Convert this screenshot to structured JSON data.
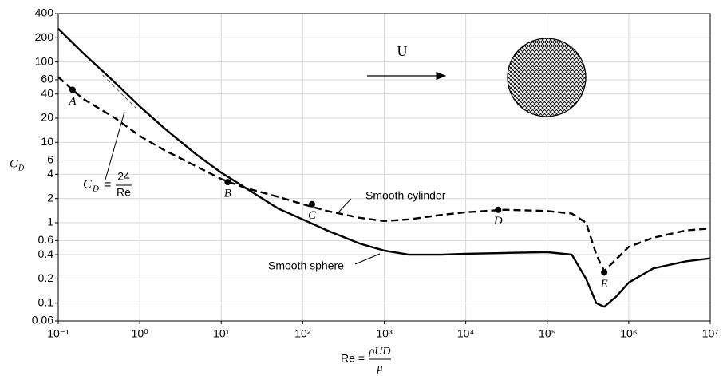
{
  "chart_data": {
    "type": "line",
    "x_label": {
      "lhs": "Re =",
      "num": "ρUD",
      "den": "μ"
    },
    "y_label": {
      "main": "C",
      "sub": "D"
    },
    "log_x": true,
    "log_y": true,
    "grid": true,
    "xlim": [
      0.1,
      10000000
    ],
    "xticks": [
      {
        "value": 0.1,
        "label": "10⁻¹"
      },
      {
        "value": 1,
        "label": "10⁰"
      },
      {
        "value": 10,
        "label": "10¹"
      },
      {
        "value": 100,
        "label": "10²"
      },
      {
        "value": 1000,
        "label": "10³"
      },
      {
        "value": 10000,
        "label": "10⁴"
      },
      {
        "value": 100000,
        "label": "10⁵"
      },
      {
        "value": 1000000,
        "label": "10⁶"
      },
      {
        "value": 10000000,
        "label": "10⁷"
      }
    ],
    "ylim": [
      0.06,
      400
    ],
    "yticks": [
      0.06,
      0.1,
      0.2,
      0.4,
      0.6,
      1,
      2,
      4,
      6,
      10,
      20,
      40,
      60,
      100,
      200,
      400
    ],
    "series": [
      {
        "name": "Smooth sphere",
        "color": "#000000",
        "dash": false,
        "x": [
          0.1,
          0.2,
          0.5,
          1,
          2,
          5,
          10,
          20,
          50,
          100,
          200,
          500,
          1000,
          2000,
          5000,
          10000,
          30000,
          100000,
          200000,
          300000,
          400000,
          500000,
          700000,
          1000000,
          2000000,
          5000000,
          10000000
        ],
        "values": [
          260,
          130,
          55,
          28,
          15,
          7,
          4.2,
          2.7,
          1.5,
          1.1,
          0.8,
          0.55,
          0.45,
          0.4,
          0.4,
          0.41,
          0.42,
          0.43,
          0.4,
          0.2,
          0.1,
          0.09,
          0.12,
          0.18,
          0.27,
          0.33,
          0.36
        ]
      },
      {
        "name": "Smooth cylinder",
        "color": "#000000",
        "dash": true,
        "x": [
          0.1,
          0.15,
          0.2,
          0.5,
          1,
          2,
          5,
          10,
          20,
          50,
          100,
          200,
          500,
          1000,
          2000,
          5000,
          10000,
          30000,
          100000,
          200000,
          300000,
          400000,
          500000,
          700000,
          1000000,
          2000000,
          5000000,
          10000000
        ],
        "values": [
          65,
          45,
          35,
          20,
          12,
          8,
          5,
          3.5,
          2.7,
          2.1,
          1.7,
          1.4,
          1.15,
          1.05,
          1.1,
          1.25,
          1.35,
          1.45,
          1.4,
          1.3,
          1.0,
          0.4,
          0.25,
          0.35,
          0.5,
          0.65,
          0.8,
          0.85
        ]
      }
    ],
    "stokes_line": {
      "x": [
        0.35,
        0.9
      ],
      "values": [
        68.6,
        26.7
      ]
    },
    "stokes_label": {
      "lhs": "C",
      "sub": "D",
      "eq": "=",
      "num": "24",
      "den": "Re"
    },
    "points": [
      {
        "label": "A",
        "x": 0.15,
        "y": 45
      },
      {
        "label": "B",
        "x": 12,
        "y": 3.2
      },
      {
        "label": "C",
        "x": 130,
        "y": 1.7
      },
      {
        "label": "D",
        "x": 25000,
        "y": 1.45
      },
      {
        "label": "E",
        "x": 500000,
        "y": 0.24
      }
    ],
    "flow_label": "U"
  }
}
